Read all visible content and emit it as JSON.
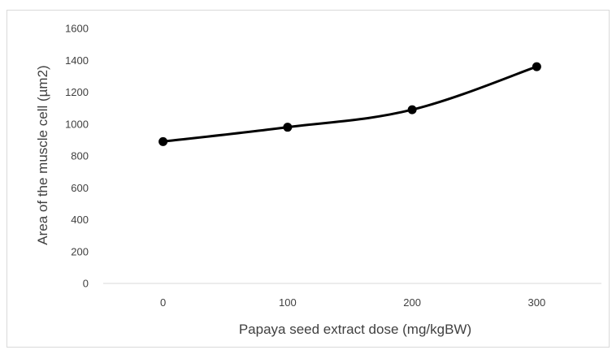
{
  "chart_data": {
    "type": "line",
    "title": "",
    "xlabel": "Papaya seed extract dose (mg/kgBW)",
    "ylabel": "Area of the muscle cell (µm2)",
    "categories": [
      "0",
      "100",
      "200",
      "300"
    ],
    "series": [
      {
        "values": [
          890,
          980,
          1090,
          1360
        ]
      }
    ],
    "ylim": [
      0,
      1600
    ],
    "yticks": [
      0,
      200,
      400,
      600,
      800,
      1000,
      1200,
      1400,
      1600
    ],
    "grid": false,
    "legend": "none",
    "line_color": "#000000",
    "axis_color": "#d9d9d9"
  }
}
